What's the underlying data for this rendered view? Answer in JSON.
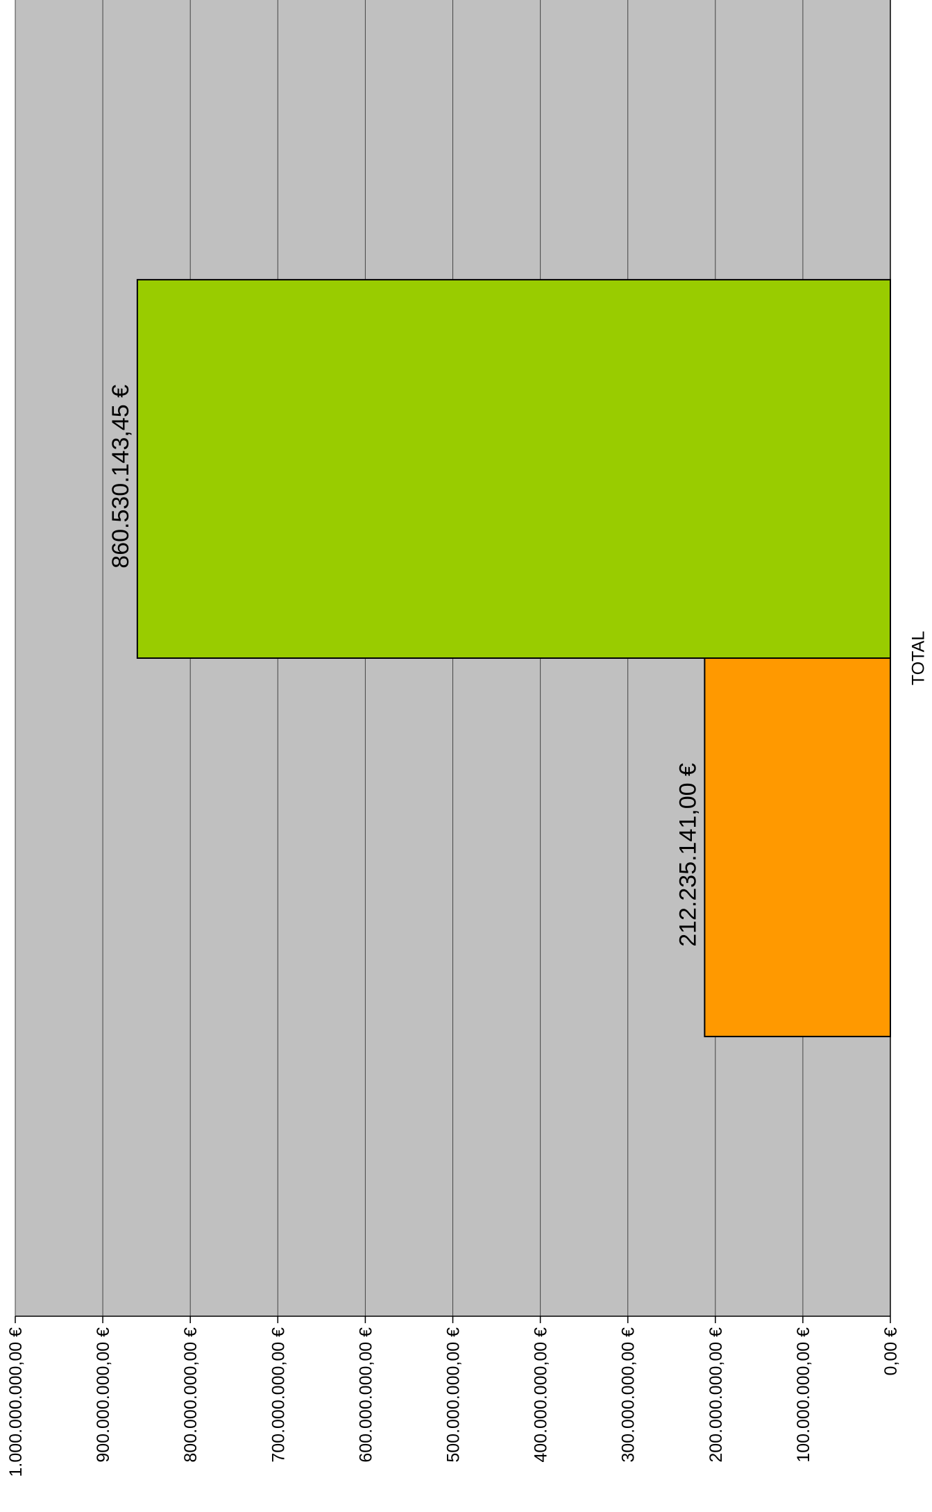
{
  "chart_data": {
    "type": "bar",
    "orientation": "rotated-90-clockwise",
    "categories": [
      "TOTAL"
    ],
    "series": [
      {
        "values": [
          212235141.0
        ],
        "color": "#FF9900",
        "data_label": "212.235.141,00 €"
      },
      {
        "values": [
          860530143.45
        ],
        "color": "#99CC00",
        "data_label": "860.530.143,45 €"
      }
    ],
    "ylim": [
      0,
      1000000000
    ],
    "ytick_step": 100000000,
    "ytick_labels": [
      "0,00 €",
      "100.000.000,00 €",
      "200.000.000,00 €",
      "300.000.000,00 €",
      "400.000.000,00 €",
      "500.000.000,00 €",
      "600.000.000,00 €",
      "700.000.000,00 €",
      "800.000.000,00 €",
      "900.000.000,00 €",
      "1.000.000.000,00 €"
    ],
    "category_label": "TOTAL",
    "grid": true,
    "plot_background": "#C0C0C0",
    "gridline_color": "#444444"
  }
}
